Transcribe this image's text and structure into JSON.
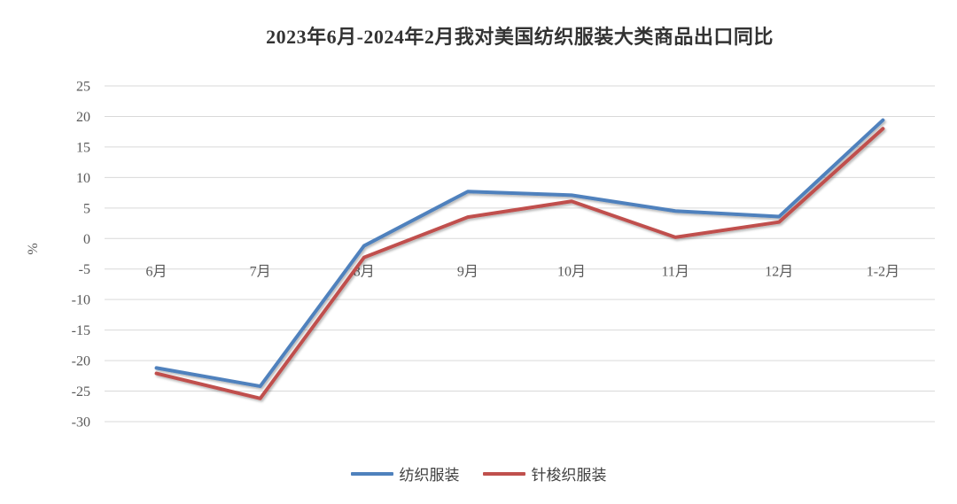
{
  "title": "2023年6月-2024年2月我对美国纺织服装大类商品出口同比",
  "colors": {
    "series_blue": "#4F81BD",
    "series_red": "#C0504D",
    "gridline": "#D9D9D9",
    "axis_label": "#595959",
    "title": "#333333",
    "background": "#FFFFFF"
  },
  "chart_data": {
    "type": "line",
    "title": "2023年6月-2024年2月我对美国纺织服装大类商品出口同比",
    "xlabel": "",
    "ylabel": "%",
    "categories": [
      "6月",
      "7月",
      "8月",
      "9月",
      "10月",
      "11月",
      "12月",
      "1-2月"
    ],
    "series": [
      {
        "name": "纺织服装",
        "color": "#4F81BD",
        "values": [
          -21.2,
          -24.2,
          -1.2,
          7.7,
          7.1,
          4.5,
          3.6,
          19.4
        ]
      },
      {
        "name": "针梭织服装",
        "color": "#C0504D",
        "values": [
          -22.1,
          -26.2,
          -3.1,
          3.5,
          6.1,
          0.2,
          2.7,
          18.0
        ]
      }
    ],
    "ylim": [
      -30,
      25
    ],
    "ytick_step": 5,
    "yticks": [
      25,
      20,
      15,
      10,
      5,
      0,
      -5,
      -10,
      -15,
      -20,
      -25,
      -30
    ],
    "grid": true,
    "x_labels_at_value": -5,
    "legend_position": "bottom"
  }
}
